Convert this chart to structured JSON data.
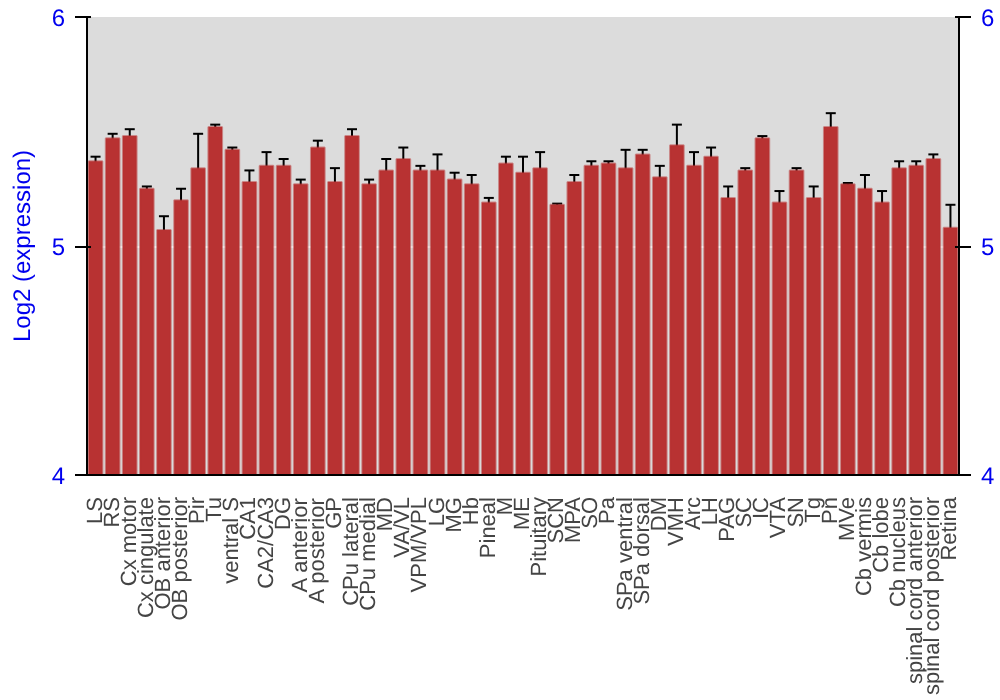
{
  "chart_data": {
    "type": "bar",
    "ylabel": "Log2 (expression)",
    "categories": [
      "LS",
      "RS",
      "Cx motor",
      "Cx cingulate",
      "OB anterior",
      "OB posterior",
      "Pir",
      "Tu",
      "ventral S",
      "CA1",
      "CA2/CA3",
      "DG",
      "A anterior",
      "A posterior",
      "GP",
      "CPu lateral",
      "CPu medial",
      "MD",
      "VA/VL",
      "VPM/VPL",
      "LG",
      "MG",
      "Hb",
      "Pineal",
      "M",
      "ME",
      "Pituitary",
      "SCN",
      "MPA",
      "SO",
      "Pa",
      "SPa ventral",
      "SPa dorsal",
      "DM",
      "VMH",
      "Arc",
      "LH",
      "PAG",
      "SC",
      "IC",
      "VTA",
      "SN",
      "Tg",
      "Pn",
      "MVe",
      "Cb vermis",
      "Cb lobe",
      "Cb nucleus",
      "spinal cord anterior",
      "spinal cord posterior",
      "Retina"
    ],
    "values": [
      5.37,
      5.47,
      5.48,
      5.25,
      5.07,
      5.2,
      5.34,
      5.52,
      5.42,
      5.28,
      5.35,
      5.35,
      5.27,
      5.43,
      5.28,
      5.48,
      5.27,
      5.33,
      5.38,
      5.33,
      5.33,
      5.29,
      5.27,
      5.19,
      5.36,
      5.32,
      5.34,
      5.18,
      5.28,
      5.35,
      5.36,
      5.34,
      5.4,
      5.3,
      5.44,
      5.35,
      5.39,
      5.21,
      5.33,
      5.47,
      5.19,
      5.33,
      5.21,
      5.52,
      5.27,
      5.25,
      5.19,
      5.34,
      5.35,
      5.38,
      5.08
    ],
    "errors": [
      0.02,
      0.02,
      0.03,
      0.01,
      0.06,
      0.05,
      0.15,
      0.01,
      0.01,
      0.05,
      0.06,
      0.03,
      0.02,
      0.03,
      0.06,
      0.03,
      0.02,
      0.05,
      0.05,
      0.02,
      0.07,
      0.03,
      0.04,
      0.02,
      0.03,
      0.07,
      0.07,
      0.005,
      0.03,
      0.02,
      0.01,
      0.08,
      0.02,
      0.05,
      0.09,
      0.06,
      0.04,
      0.05,
      0.01,
      0.01,
      0.05,
      0.01,
      0.05,
      0.06,
      0.005,
      0.06,
      0.05,
      0.03,
      0.02,
      0.02,
      0.1
    ],
    "color": "#b83232",
    "ylim": [
      4,
      6
    ],
    "yticks": [
      4,
      5,
      6
    ],
    "y2lim": [
      4,
      6
    ],
    "y2ticks": [
      4,
      5,
      6
    ],
    "grid": "y"
  }
}
